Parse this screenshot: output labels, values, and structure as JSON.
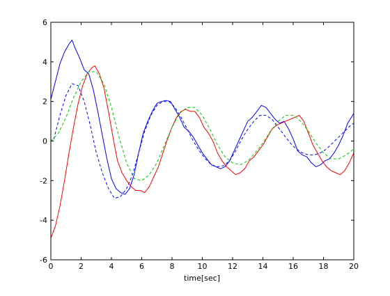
{
  "chart_data": {
    "type": "line",
    "xlabel": "time[sec]",
    "ylabel": "",
    "title": "",
    "xlim": [
      0,
      20
    ],
    "ylim": [
      -6,
      6
    ],
    "xticks": [
      0,
      2,
      4,
      6,
      8,
      10,
      12,
      14,
      16,
      18,
      20
    ],
    "yticks": [
      -6,
      -4,
      -2,
      0,
      2,
      4,
      6
    ],
    "grid": false,
    "legend": "none",
    "series": [
      {
        "color": "#0000ff",
        "style": "solid",
        "x": [
          0,
          0.3,
          0.6,
          0.9,
          1.2,
          1.4,
          1.6,
          1.9,
          2.2,
          2.5,
          2.8,
          3.1,
          3.4,
          3.7,
          4.0,
          4.3,
          4.6,
          4.9,
          5.2,
          5.5,
          5.8,
          6.1,
          6.4,
          6.7,
          7.0,
          7.3,
          7.6,
          7.9,
          8.2,
          8.5,
          8.8,
          9.1,
          9.4,
          9.7,
          10.0,
          10.3,
          10.6,
          10.9,
          11.2,
          11.5,
          11.8,
          12.1,
          12.4,
          12.7,
          13.0,
          13.3,
          13.6,
          13.9,
          14.2,
          14.5,
          14.8,
          15.1,
          15.4,
          15.7,
          16.0,
          16.3,
          16.6,
          16.9,
          17.2,
          17.5,
          17.8,
          18.1,
          18.4,
          18.7,
          19.0,
          19.3,
          19.6,
          20.0
        ],
        "y": [
          2.1,
          3.0,
          3.9,
          4.5,
          4.9,
          5.1,
          4.7,
          4.2,
          3.6,
          3.4,
          2.6,
          1.5,
          0.3,
          -0.9,
          -1.9,
          -2.4,
          -2.6,
          -2.7,
          -2.4,
          -1.7,
          -0.6,
          0.4,
          1.0,
          1.5,
          1.9,
          2.0,
          2.05,
          2.0,
          1.6,
          1.2,
          0.7,
          0.5,
          0.2,
          -0.2,
          -0.6,
          -0.9,
          -1.2,
          -1.3,
          -1.4,
          -1.3,
          -1.0,
          -0.5,
          0.0,
          0.5,
          1.0,
          1.2,
          1.5,
          1.8,
          1.7,
          1.4,
          1.1,
          0.9,
          1.0,
          0.6,
          0.1,
          -0.5,
          -0.7,
          -0.8,
          -1.1,
          -1.3,
          -1.2,
          -1.0,
          -0.9,
          -0.6,
          -0.2,
          0.3,
          0.9,
          1.4
        ]
      },
      {
        "color": "#0000ff",
        "style": "dashed",
        "x": [
          0.2,
          0.6,
          1.0,
          1.4,
          1.8,
          2.2,
          2.6,
          3.0,
          3.4,
          3.8,
          4.2,
          4.6,
          5.0,
          5.4,
          5.8,
          6.2,
          6.6,
          7.0,
          7.4,
          7.8,
          8.2,
          8.6,
          9.0,
          9.4,
          9.8,
          10.2,
          10.6,
          11.0,
          11.4,
          11.8,
          12.2,
          12.6,
          13.0,
          13.4,
          13.8,
          14.2,
          14.6,
          15.0,
          15.4,
          15.8,
          16.2,
          16.6,
          17.0,
          17.4,
          17.8,
          18.2,
          18.6,
          19.0,
          19.4,
          19.8,
          20.0
        ],
        "y": [
          0.1,
          1.3,
          2.3,
          2.9,
          2.8,
          2.0,
          0.8,
          -0.6,
          -1.6,
          -2.4,
          -2.9,
          -2.8,
          -2.4,
          -1.7,
          -0.6,
          0.5,
          1.3,
          1.8,
          2.0,
          2.0,
          1.7,
          1.2,
          0.6,
          0.0,
          -0.5,
          -0.9,
          -1.2,
          -1.3,
          -1.25,
          -1.0,
          -0.5,
          0.1,
          0.6,
          1.0,
          1.3,
          1.3,
          1.1,
          0.7,
          0.3,
          -0.1,
          -0.4,
          -0.6,
          -0.7,
          -0.7,
          -0.6,
          -0.4,
          -0.1,
          0.2,
          0.5,
          0.8,
          0.9
        ]
      },
      {
        "color": "#ff0000",
        "style": "solid",
        "x": [
          0,
          0.3,
          0.6,
          0.9,
          1.2,
          1.5,
          1.8,
          2.1,
          2.4,
          2.7,
          2.9,
          3.2,
          3.5,
          3.8,
          4.1,
          4.4,
          4.7,
          5.0,
          5.3,
          5.6,
          5.9,
          6.2,
          6.5,
          6.8,
          7.1,
          7.4,
          7.7,
          8.0,
          8.3,
          8.6,
          8.9,
          9.2,
          9.5,
          9.8,
          10.1,
          10.4,
          10.7,
          11.0,
          11.3,
          11.6,
          11.9,
          12.2,
          12.5,
          12.8,
          13.1,
          13.4,
          13.7,
          14.0,
          14.3,
          14.6,
          14.9,
          15.2,
          15.5,
          15.8,
          16.1,
          16.4,
          16.7,
          17.0,
          17.3,
          17.6,
          17.9,
          18.2,
          18.5,
          18.8,
          19.1,
          19.4,
          19.7,
          20.0
        ],
        "y": [
          -4.9,
          -4.3,
          -3.3,
          -2.0,
          -0.6,
          0.7,
          1.9,
          2.8,
          3.4,
          3.7,
          3.8,
          3.4,
          2.7,
          1.5,
          0.2,
          -1.0,
          -1.6,
          -2.0,
          -2.3,
          -2.5,
          -2.5,
          -2.6,
          -2.3,
          -1.8,
          -1.3,
          -0.6,
          0.1,
          0.7,
          1.2,
          1.5,
          1.6,
          1.5,
          1.5,
          1.2,
          0.7,
          0.4,
          0.0,
          -0.6,
          -1.0,
          -1.3,
          -1.5,
          -1.7,
          -1.6,
          -1.4,
          -1.0,
          -0.8,
          -0.5,
          -0.2,
          0.2,
          0.6,
          0.8,
          0.9,
          1.0,
          1.1,
          1.2,
          1.3,
          1.0,
          0.4,
          -0.2,
          -0.6,
          -1.0,
          -1.3,
          -1.5,
          -1.6,
          -1.7,
          -1.5,
          -1.1,
          -0.6
        ]
      },
      {
        "color": "#00cc00",
        "style": "dashed",
        "x": [
          0,
          0.5,
          1.0,
          1.5,
          2.0,
          2.5,
          3.0,
          3.5,
          4.0,
          4.5,
          5.0,
          5.5,
          6.0,
          6.5,
          7.0,
          7.5,
          8.0,
          8.5,
          9.0,
          9.5,
          10.0,
          10.5,
          11.0,
          11.5,
          12.0,
          12.5,
          13.0,
          13.5,
          14.0,
          14.5,
          15.0,
          15.5,
          16.0,
          16.5,
          17.0,
          17.5,
          18.0,
          18.5,
          19.0,
          19.5,
          20.0
        ],
        "y": [
          0.0,
          0.4,
          1.2,
          2.2,
          3.0,
          3.5,
          3.5,
          2.9,
          1.7,
          0.2,
          -1.1,
          -1.9,
          -2.0,
          -1.7,
          -1.1,
          -0.2,
          0.7,
          1.4,
          1.7,
          1.7,
          1.3,
          0.6,
          -0.2,
          -0.8,
          -1.1,
          -1.2,
          -1.0,
          -0.6,
          -0.1,
          0.5,
          1.0,
          1.3,
          1.3,
          1.0,
          0.5,
          -0.1,
          -0.6,
          -0.9,
          -0.9,
          -0.7,
          -0.4
        ]
      }
    ]
  }
}
